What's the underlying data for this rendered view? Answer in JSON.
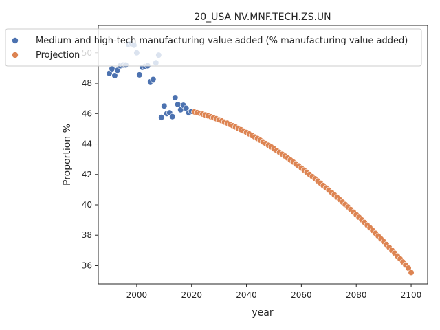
{
  "chart_data": {
    "type": "scatter",
    "title": "20_USA NV.MNF.TECH.ZS.UN",
    "xlabel": "year",
    "ylabel": "Proportion %",
    "xlim": [
      1986,
      2106
    ],
    "ylim": [
      34.8,
      51.8
    ],
    "xticks": [
      2000,
      2020,
      2040,
      2060,
      2080,
      2100
    ],
    "yticks": [
      36,
      38,
      40,
      42,
      44,
      46,
      48,
      50
    ],
    "grid": false,
    "legend_position": "top-left",
    "series": [
      {
        "name": "Medium and high-tech manufacturing value added (% manufacturing value added)",
        "color": "#4c72b0",
        "x": [
          1990,
          1991,
          1992,
          1993,
          1994,
          1995,
          1996,
          1997,
          1998,
          1999,
          2000,
          2001,
          2002,
          2003,
          2004,
          2005,
          2006,
          2007,
          2008,
          2009,
          2010,
          2011,
          2012,
          2013,
          2014,
          2015,
          2016,
          2017,
          2018,
          2019,
          2020
        ],
        "y": [
          48.65,
          48.95,
          48.5,
          48.85,
          49.15,
          49.2,
          49.2,
          50.55,
          50.6,
          50.5,
          50.0,
          48.55,
          49.05,
          49.1,
          49.15,
          48.1,
          48.25,
          49.35,
          49.85,
          45.75,
          46.5,
          46.0,
          46.05,
          45.8,
          47.05,
          46.6,
          46.25,
          46.55,
          46.35,
          46.05,
          46.15
        ]
      },
      {
        "name": "Projection",
        "color": "#dd8452",
        "x_start": 2021,
        "x_end": 2100,
        "y": [
          46.11,
          46.07,
          46.02,
          45.97,
          45.91,
          45.85,
          45.79,
          45.73,
          45.66,
          45.59,
          45.52,
          45.44,
          45.37,
          45.29,
          45.2,
          45.12,
          45.03,
          44.94,
          44.85,
          44.76,
          44.66,
          44.56,
          44.46,
          44.36,
          44.25,
          44.14,
          44.03,
          43.92,
          43.81,
          43.69,
          43.57,
          43.45,
          43.33,
          43.21,
          43.08,
          42.95,
          42.82,
          42.69,
          42.56,
          42.42,
          42.28,
          42.14,
          42.0,
          41.86,
          41.72,
          41.57,
          41.42,
          41.27,
          41.12,
          40.97,
          40.82,
          40.66,
          40.5,
          40.34,
          40.18,
          40.02,
          39.86,
          39.69,
          39.52,
          39.35,
          39.18,
          39.01,
          38.84,
          38.66,
          38.49,
          38.31,
          38.13,
          37.95,
          37.76,
          37.58,
          37.39,
          37.2,
          37.01,
          36.82,
          36.63,
          36.44,
          36.24,
          36.04,
          35.84,
          35.55
        ]
      }
    ]
  }
}
